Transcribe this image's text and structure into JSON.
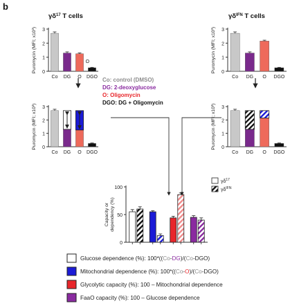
{
  "panel_letter": "b",
  "colors": {
    "control": "#c8c8c8",
    "dg": "#7a2a8c",
    "oligo": "#ee6a5b",
    "dgo": "#111111",
    "glucose_dep": "#ffffff",
    "mito_dep": "#1b1bd6",
    "glyco_cap": "#e8262b",
    "faao_cap": "#8a2ba0",
    "axis": "#333333",
    "arrow": "#222222"
  },
  "legend_text": {
    "co": "Co: control (DMSO)",
    "dg": "DG: 2-deoxyglucose",
    "o": "O: Oligomycin",
    "dgo": "DGO: DG + Oligomycin"
  },
  "legend_colors": [
    "#8c8c8c",
    "#8a2ba0",
    "#e8262b",
    "#111111"
  ],
  "formula": {
    "glucose": {
      "lead": "Glucose dependence (%): 100*((",
      "co1": "Co",
      "minus1": "-",
      "dg": "DG",
      "mid": ")/(",
      "co2": "Co",
      "minus2": "-",
      "dgo": "DGO",
      "end": ")"
    },
    "mito": {
      "lead": "Mitochondrial dependence (%): 100*((",
      "co1": "Co",
      "minus1": "-",
      "o": "O",
      "mid": ")/(",
      "co2": "Co",
      "minus2": "-",
      "dgo": "DGO",
      "end": ")"
    },
    "glyco": {
      "text": "Glycolytic capacity (%): 100 – Mitochondrial dependence"
    },
    "faao": {
      "text": "FaaO capacity (%): 100 – Glucose dependence"
    }
  },
  "chart_data": [
    {
      "id": "tl",
      "type": "bar",
      "title_main": "γδ",
      "title_sup": "17",
      "title_rest": " T cells",
      "ylabel": "Puromycin (MFI; x10³)",
      "categories": [
        "Co",
        "DG",
        "O",
        "DGO"
      ],
      "values": [
        2.7,
        1.3,
        1.25,
        0.25
      ],
      "errors": [
        0.1,
        0.08,
        0.06,
        0.03
      ],
      "yticks": [
        "0",
        "1",
        "2",
        "3"
      ],
      "ylim": [
        0,
        3
      ],
      "annotation": "O"
    },
    {
      "id": "tr",
      "type": "bar",
      "title_main": "γδ",
      "title_sup": "IFN",
      "title_rest": " T cells",
      "ylabel": "Puromycin (MFI; x10³)",
      "categories": [
        "Co",
        "DG",
        "O",
        "DGO"
      ],
      "values": [
        2.7,
        1.3,
        2.15,
        0.25
      ],
      "errors": [
        0.1,
        0.08,
        0.06,
        0.03
      ],
      "yticks": [
        "0",
        "1",
        "2",
        "3"
      ],
      "ylim": [
        0,
        3
      ]
    },
    {
      "id": "ml",
      "type": "bar",
      "ylabel": "Puromycin (MFI; x10³)",
      "categories": [
        "Co",
        "DG",
        "O",
        "DGO"
      ],
      "values": [
        2.7,
        1.3,
        1.25,
        0.25
      ],
      "errors": [
        0.1,
        0.08,
        0.06,
        0.03
      ],
      "stack_top": [
        null,
        2.7,
        2.7,
        null
      ],
      "yticks": [
        "0",
        "1",
        "2",
        "3"
      ],
      "ylim": [
        0,
        3
      ]
    },
    {
      "id": "mr",
      "type": "bar",
      "ylabel": "Puromycin (MFI; x10³)",
      "categories": [
        "Co",
        "DG",
        "O",
        "DGO"
      ],
      "values": [
        2.7,
        1.3,
        2.15,
        0.25
      ],
      "errors": [
        0.1,
        0.08,
        0.06,
        0.03
      ],
      "stack_top": [
        null,
        2.7,
        2.7,
        null
      ],
      "yticks": [
        "0",
        "1",
        "2",
        "3"
      ],
      "ylim": [
        0,
        3
      ]
    },
    {
      "id": "cap",
      "type": "bar",
      "ylabel_lines": [
        "Capacity or",
        "dependency (%)"
      ],
      "yticks": [
        "0",
        "50",
        "100"
      ],
      "ylim": [
        0,
        100
      ],
      "legend": [
        {
          "label_main": "γδ",
          "label_sup": "17",
          "pattern": "open"
        },
        {
          "label_main": "γδ",
          "label_sup": "IFN",
          "pattern": "hatch"
        }
      ],
      "groups": [
        {
          "name": "Glucose dependence",
          "values": [
            55,
            60
          ],
          "errors": [
            4,
            4
          ]
        },
        {
          "name": "Mitochondrial dependence",
          "values": [
            55,
            12
          ],
          "errors": [
            2,
            3
          ]
        },
        {
          "name": "Glycolytic capacity",
          "values": [
            44,
            86
          ],
          "errors": [
            3,
            3
          ]
        },
        {
          "name": "FaaO capacity",
          "values": [
            45,
            40
          ],
          "errors": [
            3,
            4
          ]
        }
      ]
    }
  ]
}
